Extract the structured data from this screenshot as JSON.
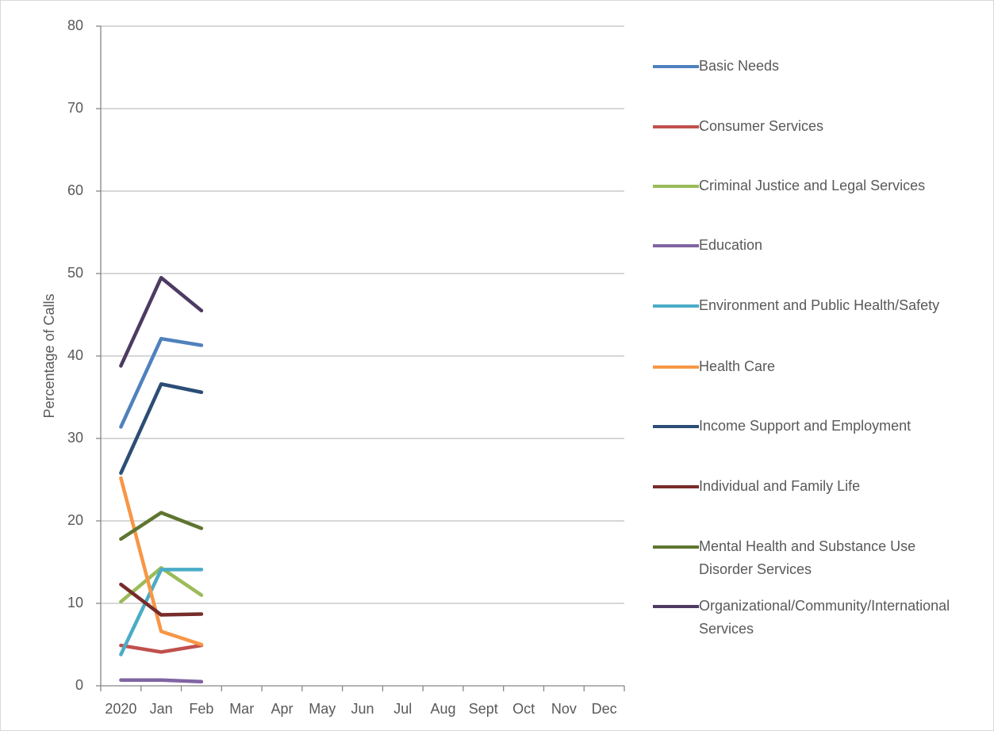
{
  "chart_data": {
    "type": "line",
    "y_label": "Percentage of Calls",
    "categories": [
      "2020",
      "Jan",
      "Feb",
      "Mar",
      "Apr",
      "May",
      "Jun",
      "Jul",
      "Aug",
      "Sept",
      "Oct",
      "Nov",
      "Dec"
    ],
    "ylim": [
      0,
      80
    ],
    "yticks": [
      0,
      10,
      20,
      30,
      40,
      50,
      60,
      70,
      80
    ],
    "grid": true,
    "legend": "right",
    "series": [
      {
        "name": "Basic Needs",
        "color": "#4f81bd",
        "values": [
          31.4,
          42.1,
          41.3,
          null,
          null,
          null,
          null,
          null,
          null,
          null,
          null,
          null,
          null
        ]
      },
      {
        "name": "Consumer Services",
        "color": "#c0504d",
        "values": [
          4.9,
          4.1,
          4.9,
          null,
          null,
          null,
          null,
          null,
          null,
          null,
          null,
          null,
          null
        ]
      },
      {
        "name": "Criminal Justice and Legal Services",
        "color": "#9bbb59",
        "values": [
          10.2,
          14.3,
          11.0,
          null,
          null,
          null,
          null,
          null,
          null,
          null,
          null,
          null,
          null
        ]
      },
      {
        "name": "Education",
        "color": "#8064a2",
        "values": [
          0.7,
          0.7,
          0.5,
          null,
          null,
          null,
          null,
          null,
          null,
          null,
          null,
          null,
          null
        ]
      },
      {
        "name": "Environment and Public Health/Safety",
        "color": "#4bacc6",
        "values": [
          3.8,
          14.1,
          14.1,
          null,
          null,
          null,
          null,
          null,
          null,
          null,
          null,
          null,
          null
        ]
      },
      {
        "name": "Health Care",
        "color": "#f79646",
        "values": [
          25.2,
          6.6,
          5.0,
          null,
          null,
          null,
          null,
          null,
          null,
          null,
          null,
          null,
          null
        ]
      },
      {
        "name": "Income Support and Employment",
        "color": "#2c4d75",
        "values": [
          25.8,
          36.6,
          35.6,
          null,
          null,
          null,
          null,
          null,
          null,
          null,
          null,
          null,
          null
        ]
      },
      {
        "name": "Individual and Family Life",
        "color": "#772c2a",
        "values": [
          12.3,
          8.6,
          8.7,
          null,
          null,
          null,
          null,
          null,
          null,
          null,
          null,
          null,
          null
        ]
      },
      {
        "name": "Mental Health and Substance Use Disorder Services",
        "color": "#5f7530",
        "values": [
          17.8,
          21.0,
          19.1,
          null,
          null,
          null,
          null,
          null,
          null,
          null,
          null,
          null,
          null
        ]
      },
      {
        "name": "Organizational/Community/International Services",
        "color": "#4d3b62",
        "values": [
          38.8,
          49.5,
          45.5,
          null,
          null,
          null,
          null,
          null,
          null,
          null,
          null,
          null,
          null
        ]
      }
    ]
  }
}
